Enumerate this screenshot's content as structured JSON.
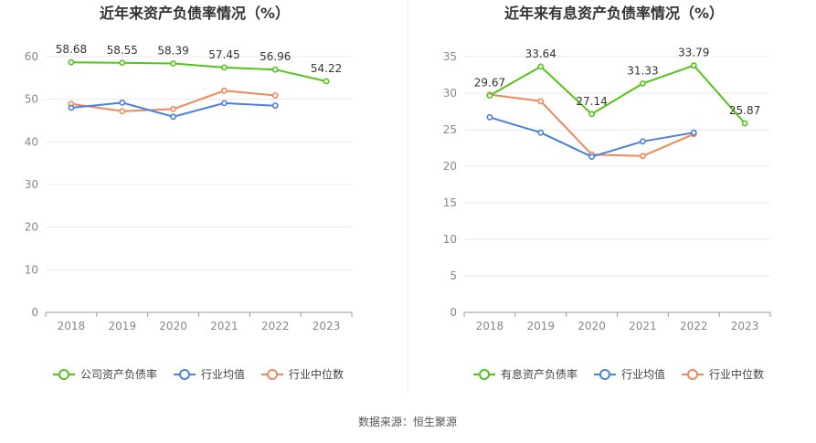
{
  "source": "数据来源：恒生聚源",
  "chart_data": [
    {
      "type": "line",
      "title": "近年来资产负债率情况（%）",
      "categories": [
        "2018",
        "2019",
        "2020",
        "2021",
        "2022",
        "2023"
      ],
      "ylim": [
        0,
        60
      ],
      "yticks": [
        0,
        10,
        20,
        30,
        40,
        50,
        60
      ],
      "grid": true,
      "legend_position": "bottom",
      "series": [
        {
          "name": "公司资产负债率",
          "color": "#52c41a",
          "values": [
            58.68,
            58.55,
            58.39,
            57.45,
            56.96,
            54.22
          ],
          "labels": [
            "58.68",
            "58.55",
            "58.39",
            "57.45",
            "56.96",
            "54.22"
          ]
        },
        {
          "name": "行业均值",
          "color": "#4a7fe0",
          "values": [
            48.0,
            49.2,
            45.9,
            49.1,
            48.5,
            null
          ]
        },
        {
          "name": "行业中位数",
          "color": "#f0875a",
          "values": [
            48.9,
            47.2,
            47.7,
            52.0,
            50.9,
            null
          ]
        }
      ]
    },
    {
      "type": "line",
      "title": "近年来有息资产负债率情况（%）",
      "categories": [
        "2018",
        "2019",
        "2020",
        "2021",
        "2022",
        "2023"
      ],
      "ylim": [
        0,
        35
      ],
      "yticks": [
        0,
        5,
        10,
        15,
        20,
        25,
        30,
        35
      ],
      "grid": true,
      "legend_position": "bottom",
      "series": [
        {
          "name": "有息资产负债率",
          "color": "#52c41a",
          "values": [
            29.67,
            33.64,
            27.14,
            31.33,
            33.79,
            25.87
          ],
          "labels": [
            "29.67",
            "33.64",
            "27.14",
            "31.33",
            "33.79",
            "25.87"
          ]
        },
        {
          "name": "行业均值",
          "color": "#4a7fe0",
          "values": [
            26.7,
            24.6,
            21.3,
            23.4,
            24.6,
            null
          ]
        },
        {
          "name": "行业中位数",
          "color": "#f0875a",
          "values": [
            29.8,
            28.9,
            21.6,
            21.4,
            24.4,
            null
          ]
        }
      ]
    }
  ]
}
